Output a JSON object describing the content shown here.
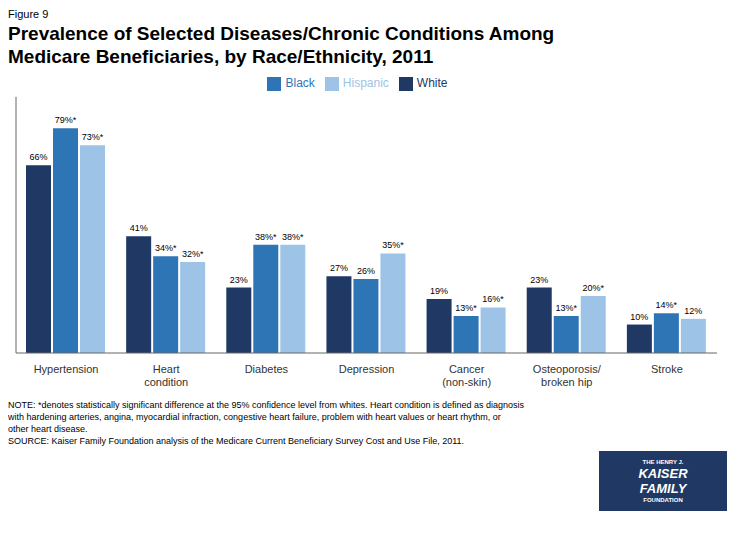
{
  "chart_data": {
    "type": "bar",
    "title": "Prevalence of Selected Diseases/Chronic Conditions Among\nMedicare Beneficiaries, by Race/Ethnicity, 2011",
    "subtitle": "Figure 9",
    "categories": [
      "Hypertension",
      "Heart\ncondition",
      "Diabetes",
      "Depression",
      "Cancer\n(non-skin)",
      "Osteoporosis/\nbroken hip",
      "Stroke"
    ],
    "series": [
      {
        "name": "White",
        "color": "#1F3864",
        "values": [
          66,
          41,
          23,
          27,
          19,
          23,
          10
        ],
        "value_labels": [
          "66%",
          "41%",
          "23%",
          "27%",
          "19%",
          "23%",
          "10%"
        ]
      },
      {
        "name": "Black",
        "color": "#2E75B6",
        "values": [
          79,
          34,
          38,
          26,
          13,
          13,
          14
        ],
        "value_labels": [
          "79%*",
          "34%*",
          "38%*",
          "26%",
          "13%*",
          "13%*",
          "14%*"
        ]
      },
      {
        "name": "Hispanic",
        "color": "#9DC3E6",
        "values": [
          73,
          32,
          38,
          35,
          16,
          20,
          12
        ],
        "value_labels": [
          "73%*",
          "32%*",
          "38%*",
          "35%*",
          "16%*",
          "20%*",
          "12%"
        ]
      }
    ],
    "ylim": [
      0,
      90
    ],
    "data_labels": true,
    "tick_labels": "x",
    "grid": false,
    "legend": "top",
    "annotations": [
      "NOTE: *denotes statistically significant difference at the 95% confidence level from whites. Heart condition is defined as diagnosis",
      "with hardening arteries, angina, myocardial infraction, congestive heart failure, problem with heart values or heart rhythm, or",
      "other heart disease.",
      "SOURCE: Kaiser Family Foundation analysis of the Medicare Current Beneficiary Survey Cost and Use File, 2011.",
      "THE HENRY J.",
      "KAISER",
      "FAMILY",
      "FOUNDATION"
    ]
  }
}
